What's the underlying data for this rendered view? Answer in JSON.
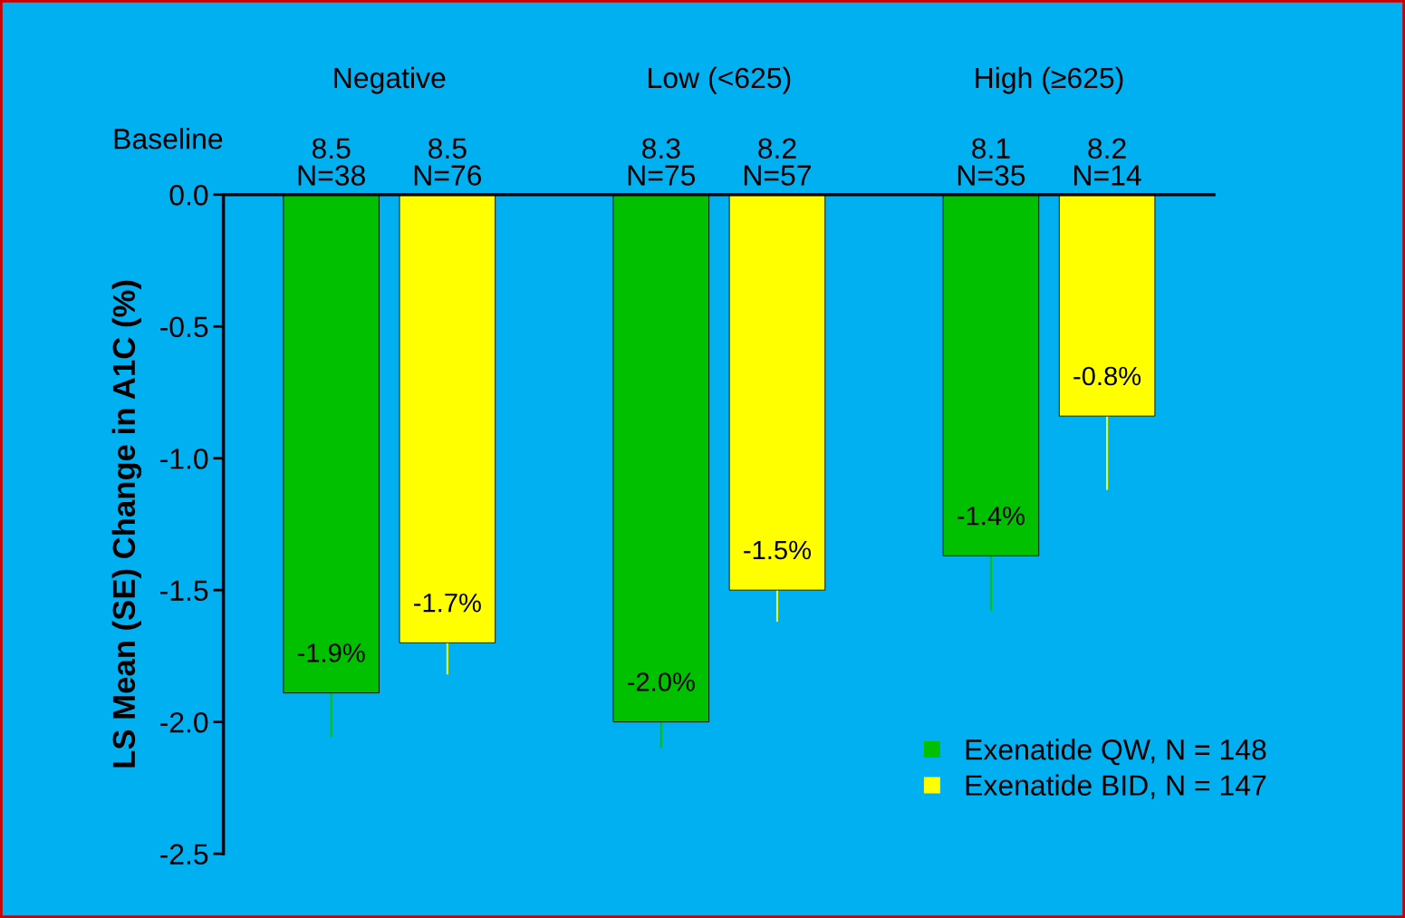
{
  "chart_data": {
    "type": "bar",
    "ylabel": "LS Mean (SE) Change in A1C (%)",
    "categories": [
      "Negative",
      "Low (<625)",
      "High (≥625)"
    ],
    "series": [
      {
        "name": "Exenatide QW, N = 148",
        "color": "#00c000",
        "values": [
          -1.89,
          -2.0,
          -1.37
        ],
        "errors": [
          [
            -2.06,
            -1.89
          ],
          [
            -2.1,
            -2.0
          ],
          [
            -1.58,
            -1.37
          ]
        ],
        "value_labels": [
          "-1.9%",
          "-2.0%",
          "-1.4%"
        ]
      },
      {
        "name": "Exenatide BID, N = 147",
        "color": "#ffff00",
        "values": [
          -1.7,
          -1.5,
          -0.84
        ],
        "errors": [
          [
            -1.82,
            -1.7
          ],
          [
            -1.62,
            -1.5
          ],
          [
            -1.12,
            -0.84
          ]
        ],
        "value_labels": [
          "-1.7%",
          "-1.5%",
          "-0.8%"
        ]
      }
    ],
    "annotations": [
      "Baseline",
      "8.5\nN=38",
      "8.5\nN=76",
      "8.3\nN=75",
      "8.2\nN=57",
      "8.1\nN=35",
      "8.2\nN=14"
    ],
    "ylim": [
      -2.5,
      0.0
    ],
    "yticks": [
      {
        "value": 0,
        "label": "0.0"
      },
      -0.5,
      {
        "value": -1,
        "label": "-1.0"
      },
      -1.5,
      {
        "value": -2,
        "label": "-2.0"
      },
      -2.5
    ],
    "grid": false,
    "legend": "bottom right",
    "marker": "square"
  }
}
